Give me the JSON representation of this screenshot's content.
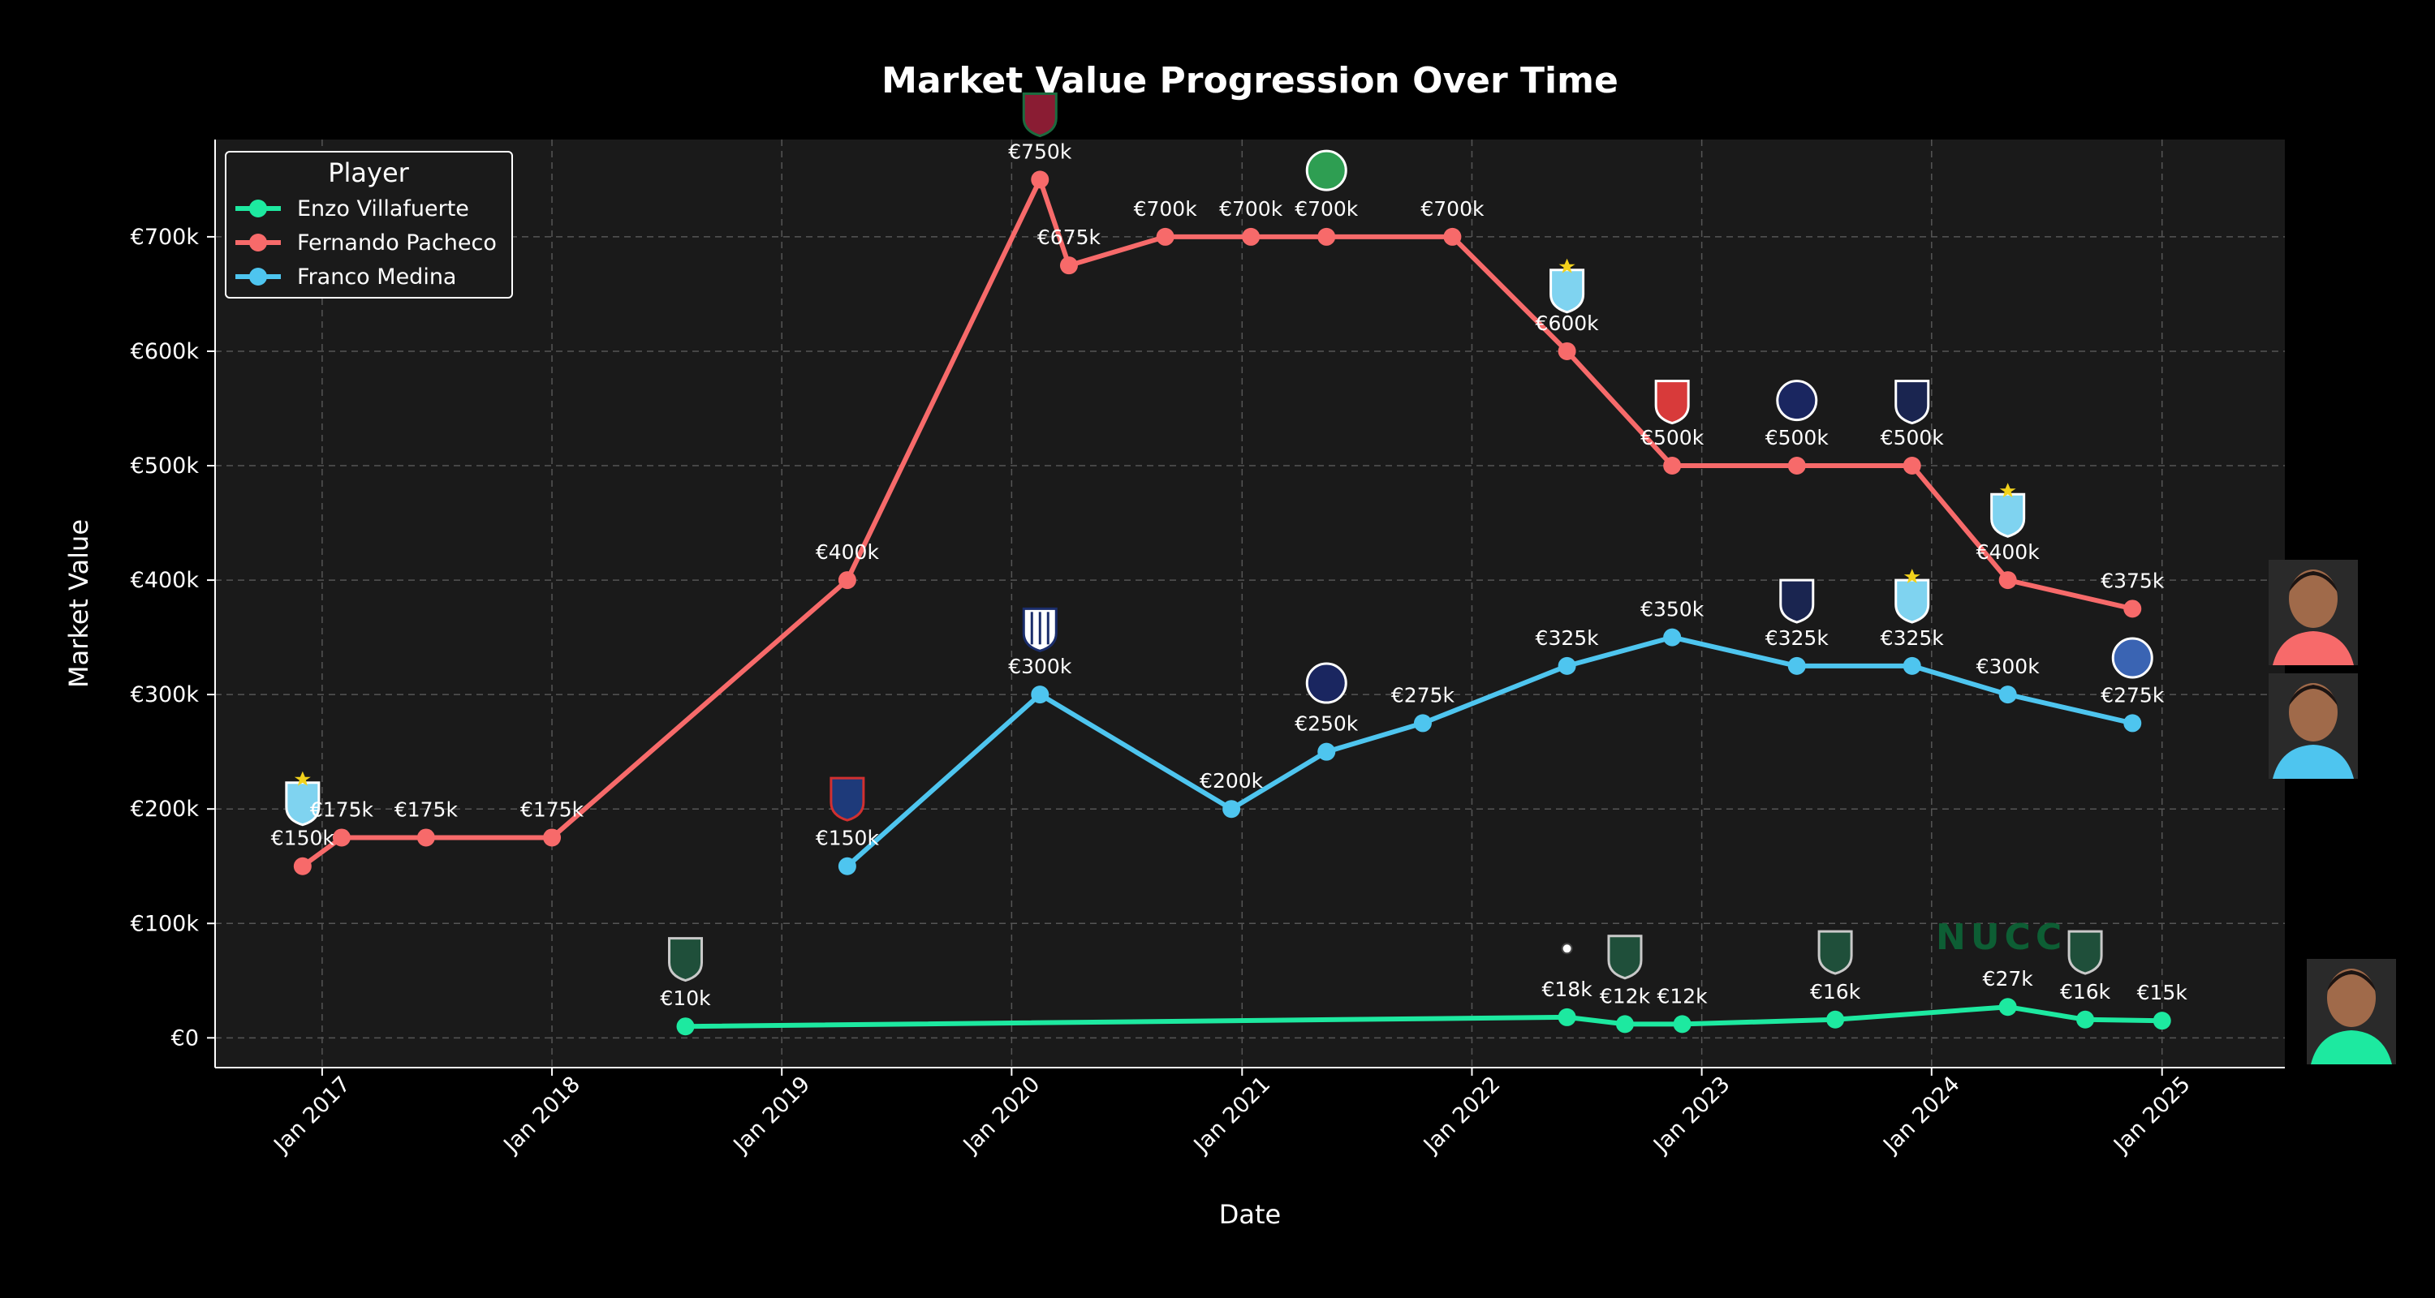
{
  "chart_data": {
    "type": "line",
    "title": "Market Value Progression Over Time",
    "xlabel": "Date",
    "ylabel": "Market Value",
    "xlim": [
      "2016-07-15",
      "2025-07-15"
    ],
    "ylim": [
      -26000,
      785000
    ],
    "x_ticks": [
      {
        "date": "2017-01-01",
        "label": "Jan 2017"
      },
      {
        "date": "2018-01-01",
        "label": "Jan 2018"
      },
      {
        "date": "2019-01-01",
        "label": "Jan 2019"
      },
      {
        "date": "2020-01-01",
        "label": "Jan 2020"
      },
      {
        "date": "2021-01-01",
        "label": "Jan 2021"
      },
      {
        "date": "2022-01-01",
        "label": "Jan 2022"
      },
      {
        "date": "2023-01-01",
        "label": "Jan 2023"
      },
      {
        "date": "2024-01-01",
        "label": "Jan 2024"
      },
      {
        "date": "2025-01-01",
        "label": "Jan 2025"
      }
    ],
    "y_ticks": [
      {
        "value": 0,
        "label": "€0"
      },
      {
        "value": 100000,
        "label": "€100k"
      },
      {
        "value": 200000,
        "label": "€200k"
      },
      {
        "value": 300000,
        "label": "€300k"
      },
      {
        "value": 400000,
        "label": "€400k"
      },
      {
        "value": 500000,
        "label": "€500k"
      },
      {
        "value": 600000,
        "label": "€600k"
      },
      {
        "value": 700000,
        "label": "€700k"
      }
    ],
    "grid": true,
    "legend": {
      "title": "Player",
      "position": "top-left"
    },
    "background": "#1a1a1a",
    "series": [
      {
        "name": "Enzo Villafuerte",
        "color": "#1de9a0",
        "points": [
          {
            "x": "2018-08-01",
            "y": 10000,
            "label": "€10k"
          },
          {
            "x": "2022-06-01",
            "y": 18000,
            "label": "€18k"
          },
          {
            "x": "2022-09-01",
            "y": 12000,
            "label": "€12k"
          },
          {
            "x": "2022-12-01",
            "y": 12000,
            "label": "€12k"
          },
          {
            "x": "2023-08-01",
            "y": 16000,
            "label": "€16k"
          },
          {
            "x": "2024-05-01",
            "y": 27000,
            "label": "€27k"
          },
          {
            "x": "2024-09-01",
            "y": 16000,
            "label": "€16k"
          },
          {
            "x": "2025-01-01",
            "y": 15000,
            "label": "€15k"
          }
        ]
      },
      {
        "name": "Fernando Pacheco",
        "color": "#f76a6a",
        "points": [
          {
            "x": "2016-12-01",
            "y": 150000,
            "label": "€150k"
          },
          {
            "x": "2017-02-01",
            "y": 175000,
            "label": "€175k"
          },
          {
            "x": "2017-06-15",
            "y": 175000,
            "label": "€175k"
          },
          {
            "x": "2018-01-01",
            "y": 175000,
            "label": "€175k"
          },
          {
            "x": "2019-04-15",
            "y": 400000,
            "label": "€400k"
          },
          {
            "x": "2020-02-15",
            "y": 750000,
            "label": "€750k"
          },
          {
            "x": "2020-04-01",
            "y": 675000,
            "label": "€675k"
          },
          {
            "x": "2020-09-01",
            "y": 700000,
            "label": "€700k"
          },
          {
            "x": "2021-01-15",
            "y": 700000,
            "label": "€700k"
          },
          {
            "x": "2021-05-15",
            "y": 700000,
            "label": "€700k"
          },
          {
            "x": "2021-12-01",
            "y": 700000,
            "label": "€700k"
          },
          {
            "x": "2022-06-01",
            "y": 600000,
            "label": "€600k"
          },
          {
            "x": "2022-11-15",
            "y": 500000,
            "label": "€500k"
          },
          {
            "x": "2023-06-01",
            "y": 500000,
            "label": "€500k"
          },
          {
            "x": "2023-12-01",
            "y": 500000,
            "label": "€500k"
          },
          {
            "x": "2024-05-01",
            "y": 400000,
            "label": "€400k"
          },
          {
            "x": "2024-11-15",
            "y": 375000,
            "label": "€375k"
          }
        ]
      },
      {
        "name": "Franco Medina",
        "color": "#4ec5ef",
        "points": [
          {
            "x": "2019-04-15",
            "y": 150000,
            "label": "€150k"
          },
          {
            "x": "2020-02-15",
            "y": 300000,
            "label": "€300k"
          },
          {
            "x": "2020-12-15",
            "y": 200000,
            "label": "€200k"
          },
          {
            "x": "2021-05-15",
            "y": 250000,
            "label": "€250k"
          },
          {
            "x": "2021-10-15",
            "y": 275000,
            "label": "€275k"
          },
          {
            "x": "2022-06-01",
            "y": 325000,
            "label": "€325k"
          },
          {
            "x": "2022-11-15",
            "y": 350000,
            "label": "€350k"
          },
          {
            "x": "2023-06-01",
            "y": 325000,
            "label": "€325k"
          },
          {
            "x": "2023-12-01",
            "y": 325000,
            "label": "€325k"
          },
          {
            "x": "2024-05-01",
            "y": 300000,
            "label": "€300k"
          },
          {
            "x": "2024-11-15",
            "y": 275000,
            "label": "€275k"
          }
        ]
      }
    ],
    "club_badges": [
      {
        "name": "sporting-cristal-badge",
        "x": "2016-12-01",
        "y": 206000
      },
      {
        "name": "ucv-badge",
        "x": "2019-04-15",
        "y": 210000
      },
      {
        "name": "alianza-lima-badge",
        "x": "2020-02-15",
        "y": 358000
      },
      {
        "name": "fluminense-badge",
        "x": "2020-02-15",
        "y": 808000
      },
      {
        "name": "oriente-petrolero-badge",
        "x": "2021-05-15",
        "y": 758000
      },
      {
        "name": "deportivo-municipal-badge",
        "x": "2021-05-15",
        "y": 310000
      },
      {
        "name": "sporting-cristal-badge",
        "x": "2022-06-01",
        "y": 654000
      },
      {
        "name": "universitario-badge",
        "x": "2022-11-15",
        "y": 557000
      },
      {
        "name": "deportivo-municipal-badge",
        "x": "2023-06-01",
        "y": 557000
      },
      {
        "name": "cienciano-badge",
        "x": "2023-12-01",
        "y": 557000
      },
      {
        "name": "cienciano-badge",
        "x": "2023-06-01",
        "y": 383000
      },
      {
        "name": "sporting-cristal-badge",
        "x": "2023-12-01",
        "y": 383000
      },
      {
        "name": "sporting-cristal-badge",
        "x": "2024-05-01",
        "y": 458000
      },
      {
        "name": "alianza-atletico-badge",
        "x": "2024-11-15",
        "y": 332000
      },
      {
        "name": "ohio-bobcats-badge",
        "x": "2018-08-01",
        "y": 70000
      },
      {
        "name": "ohio-bobcats-badge",
        "x": "2022-09-01",
        "y": 72000
      },
      {
        "name": "ohio-bobcats-badge",
        "x": "2023-08-01",
        "y": 76000
      },
      {
        "name": "ohio-bobcats-badge",
        "x": "2024-09-01",
        "y": 76000
      },
      {
        "name": "soccer-ball-badge",
        "x": "2022-06-01",
        "y": 78000
      }
    ],
    "player_photos": [
      {
        "name": "fernando-pacheco-photo",
        "player": "Fernando Pacheco",
        "color": "#f76a6a"
      },
      {
        "name": "franco-medina-photo",
        "player": "Franco Medina",
        "color": "#4ec5ef"
      },
      {
        "name": "enzo-villafuerte-photo",
        "player": "Enzo Villafuerte",
        "color": "#1de9a0"
      }
    ]
  },
  "watermark": {
    "text": "NUCC"
  }
}
